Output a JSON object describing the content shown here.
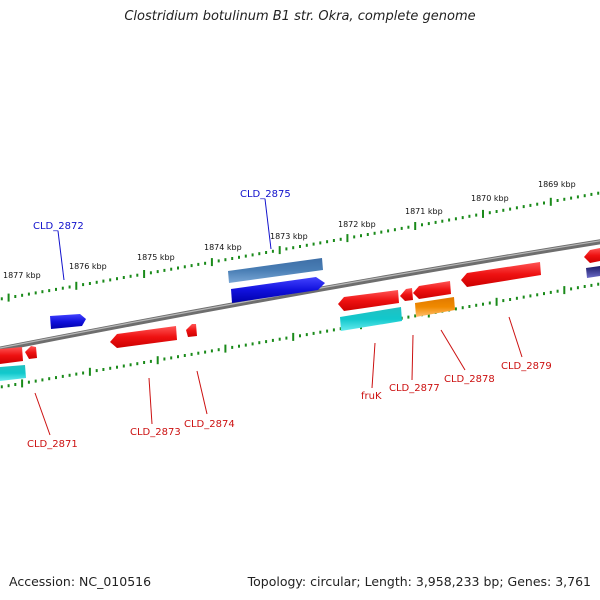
{
  "title": "Clostridium botulinum B1 str. Okra, complete genome",
  "footer": {
    "accession": "Accession: NC_010516",
    "topology": "Topology: circular; Length: 3,958,233 bp; Genes: 3,761"
  },
  "scale_ticks": [
    "1877 kbp",
    "1876 kbp",
    "1875 kbp",
    "1874 kbp",
    "1873 kbp",
    "1872 kbp",
    "1871 kbp",
    "1870 kbp",
    "1869 kbp"
  ],
  "gene_labels": {
    "top": [
      "CLD_2872",
      "CLD_2875"
    ],
    "bottom": [
      "CLD_2871",
      "CLD_2873",
      "CLD_2874",
      "fruK",
      "CLD_2877",
      "CLD_2878",
      "CLD_2879"
    ]
  },
  "colors": {
    "backbone": "#888888",
    "tick": "#1a8a1a",
    "gene_red": "#ee1111",
    "gene_blue": "#1111dd",
    "gene_steel": "#4a7fb5",
    "gene_cyan": "#11c8cc",
    "gene_orange": "#f08a00",
    "label_blue": "#1111cc",
    "label_red": "#cc1111"
  }
}
